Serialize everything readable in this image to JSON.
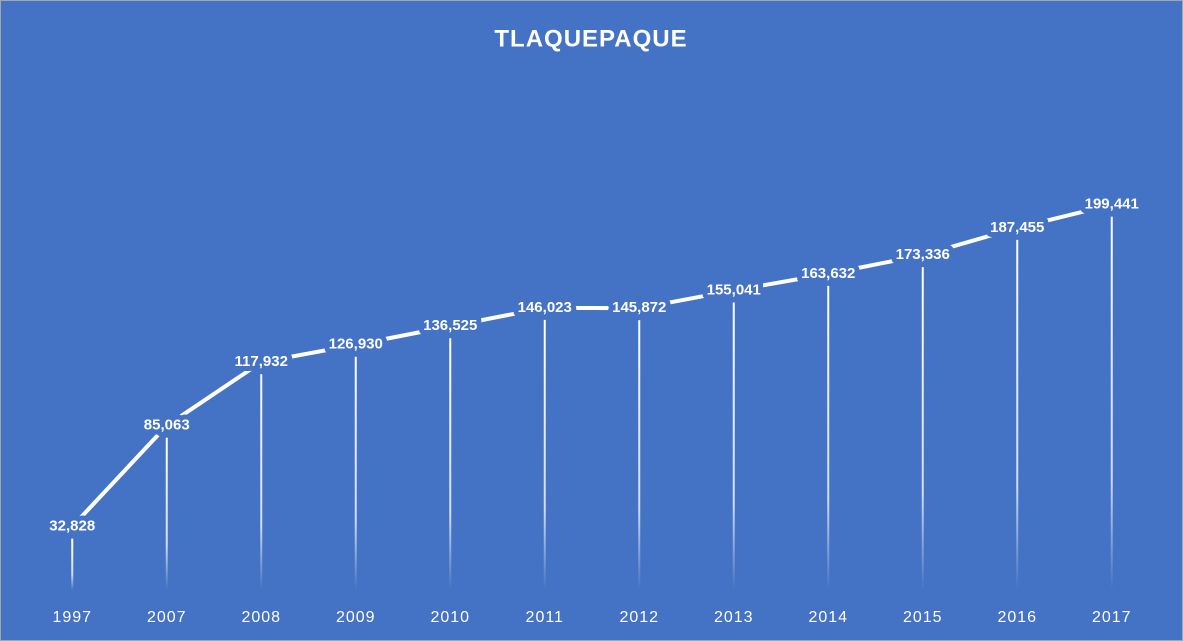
{
  "chart_data": {
    "type": "line",
    "title": "TLAQUEPAQUE",
    "categories": [
      "1997",
      "2007",
      "2008",
      "2009",
      "2010",
      "2011",
      "2012",
      "2013",
      "2014",
      "2015",
      "2016",
      "2017"
    ],
    "values": [
      32828,
      85063,
      117932,
      126930,
      136525,
      146023,
      145872,
      155041,
      163632,
      173336,
      187455,
      199441
    ],
    "value_labels": [
      "32,828",
      "85,063",
      "117,932",
      "126,930",
      "136,525",
      "146,023",
      "145,872",
      "155,041",
      "163,632",
      "173,336",
      "187,455",
      "199,441"
    ],
    "color": "#ffffff",
    "ylim": [
      0,
      250000
    ]
  }
}
